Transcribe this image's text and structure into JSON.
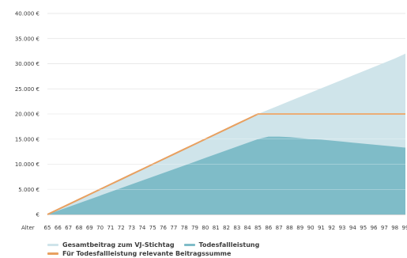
{
  "chart_data": {
    "type": "area",
    "x_label_prefix": "Alter",
    "x": [
      65,
      66,
      67,
      68,
      69,
      70,
      71,
      72,
      73,
      74,
      75,
      76,
      77,
      78,
      79,
      80,
      81,
      82,
      83,
      84,
      85,
      86,
      87,
      88,
      89,
      90,
      91,
      92,
      93,
      94,
      95,
      96,
      97,
      98,
      99
    ],
    "ylim": [
      0,
      40000
    ],
    "yticks": [
      {
        "value": 0,
        "label": "€"
      },
      {
        "value": 5000,
        "label": "5.000 €"
      },
      {
        "value": 10000,
        "label": "10.000 €"
      },
      {
        "value": 15000,
        "label": "15.000 €"
      },
      {
        "value": 20000,
        "label": "20.000 €"
      },
      {
        "value": 25000,
        "label": "25.000 €"
      },
      {
        "value": 30000,
        "label": "30.000 €"
      },
      {
        "value": 35000,
        "label": "35.000 €"
      },
      {
        "value": 40000,
        "label": "40.000 €"
      }
    ],
    "grid": true,
    "series": [
      {
        "name": "Gesamtbeitrag zum VJ-Stichtag",
        "kind": "area",
        "color": "#cfe4ea",
        "values": [
          0,
          1000,
          2000,
          3000,
          4000,
          5000,
          6000,
          7000,
          8000,
          9000,
          10000,
          11000,
          12000,
          13000,
          14000,
          15000,
          16000,
          17000,
          18000,
          19000,
          20000,
          20850,
          21700,
          22550,
          23400,
          24250,
          25100,
          25950,
          26800,
          27650,
          28500,
          29350,
          30200,
          31050,
          32000
        ]
      },
      {
        "name": "Todesfallleistung",
        "kind": "area",
        "color": "#7fbcc8",
        "values": [
          0,
          750,
          1500,
          2250,
          3000,
          3750,
          4500,
          5250,
          6000,
          6750,
          7500,
          8250,
          9000,
          9750,
          10500,
          11250,
          12000,
          12750,
          13500,
          14250,
          15000,
          15500,
          15500,
          15400,
          15200,
          15000,
          14900,
          14700,
          14500,
          14300,
          14100,
          13900,
          13700,
          13500,
          13300
        ]
      },
      {
        "name": "Für Todesfallleistung relevante Beitragssumme",
        "kind": "line",
        "color": "#e8a060",
        "values": [
          0,
          1000,
          2000,
          3000,
          4000,
          5000,
          6000,
          7000,
          8000,
          9000,
          10000,
          11000,
          12000,
          13000,
          14000,
          15000,
          16000,
          17000,
          18000,
          19000,
          20000,
          20000,
          20000,
          20000,
          20000,
          20000,
          20000,
          20000,
          20000,
          20000,
          20000,
          20000,
          20000,
          20000,
          20000
        ]
      }
    ],
    "legend_position": "bottom-left"
  },
  "legend": {
    "item1": "Gesamtbeitrag zum VJ-Stichtag",
    "item2": "Todesfallleistung",
    "item3": "Für Todesfallleistung relevante Beitragssumme"
  },
  "colors": {
    "light_area": "#cfe4ea",
    "dark_area": "#7fbcc8",
    "line": "#e8a060",
    "grid": "#e2e2e2",
    "axis": "#9a9a9a"
  }
}
